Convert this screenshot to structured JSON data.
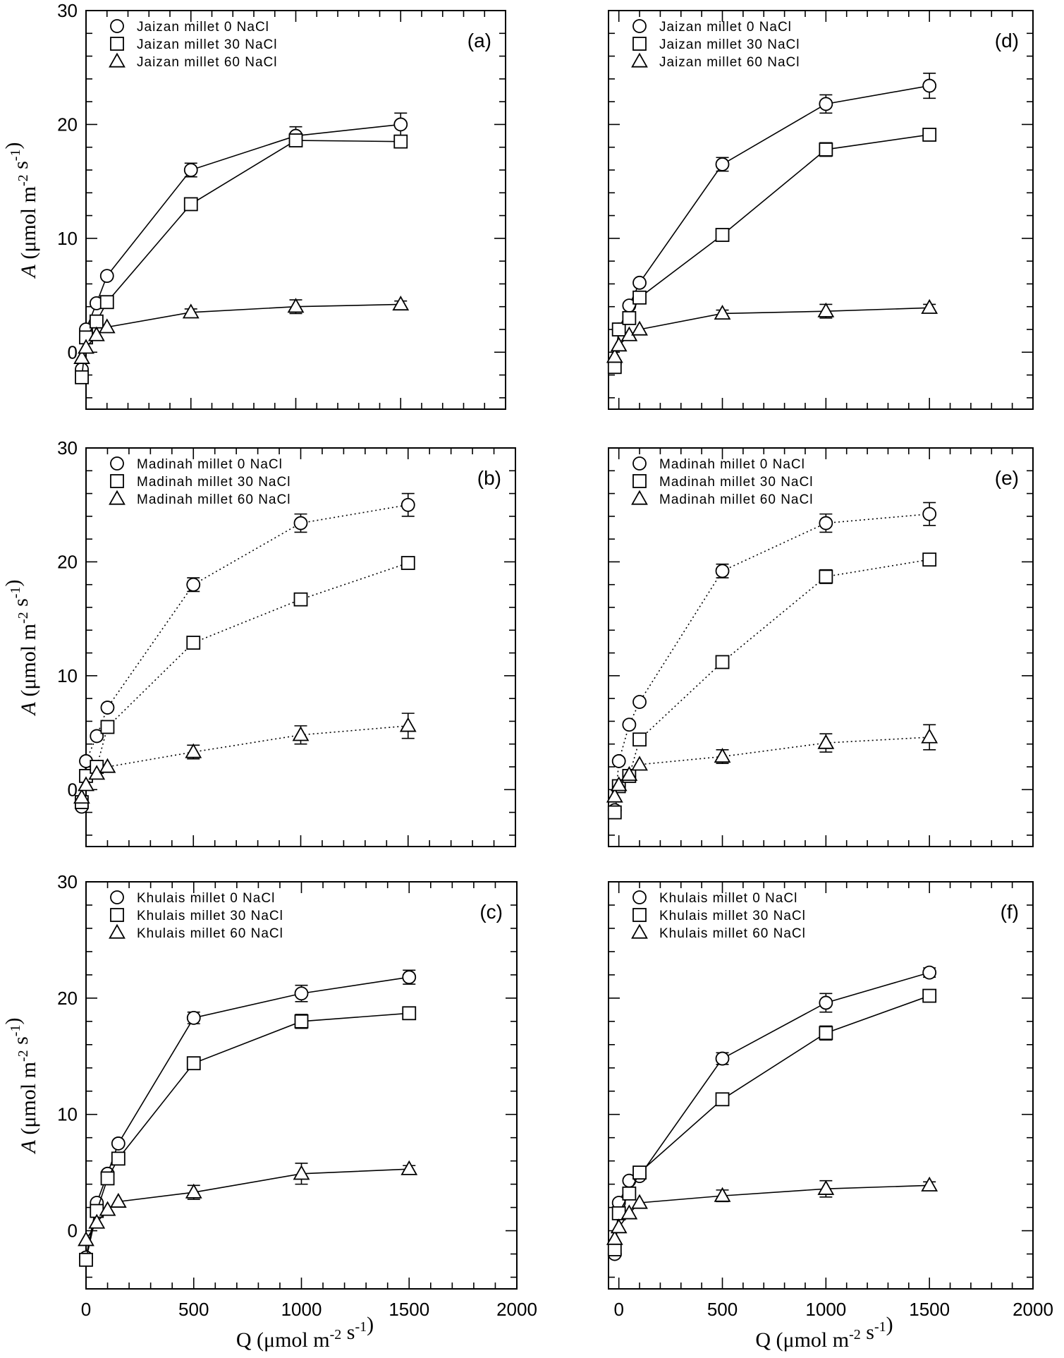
{
  "chart_data": [
    {
      "type": "scatter",
      "panel": "(a)",
      "xlabel": "",
      "ylabel": "A (μmol m-2 s-1)",
      "xlim": [
        0,
        2000
      ],
      "ylim": [
        -5,
        30
      ],
      "yticks": [
        "30",
        "20",
        "10",
        "0"
      ],
      "xticks": [],
      "line_style": "solid",
      "series": [
        {
          "name": "Jaizan millet 0 NaCl",
          "marker": "circle",
          "x": [
            -20,
            0,
            50,
            100,
            500,
            1000,
            1500
          ],
          "y": [
            -1.5,
            2.0,
            4.3,
            6.7,
            16.0,
            19.0,
            20.0
          ],
          "err": [
            0,
            0,
            0,
            0,
            0.6,
            0.8,
            1.0
          ]
        },
        {
          "name": "Jaizan millet 30 NaCl",
          "marker": "square",
          "x": [
            -20,
            0,
            50,
            100,
            500,
            1000,
            1500
          ],
          "y": [
            -2.2,
            1.3,
            2.7,
            4.4,
            13.0,
            18.6,
            18.5
          ],
          "err": [
            0,
            0,
            0,
            0,
            0,
            0.4,
            0
          ]
        },
        {
          "name": "Jaizan millet 60 NaCl",
          "marker": "triangle",
          "x": [
            -20,
            0,
            50,
            100,
            500,
            1000,
            1500
          ],
          "y": [
            -0.5,
            0.4,
            1.5,
            2.2,
            3.5,
            4.0,
            4.2
          ],
          "err": [
            0,
            0,
            0,
            0,
            0.3,
            0.6,
            0.3
          ]
        }
      ]
    },
    {
      "type": "scatter",
      "panel": "(b)",
      "xlabel": "",
      "ylabel": "A (μmol m-2 s-1)",
      "xlim": [
        0,
        2000
      ],
      "ylim": [
        -5,
        30
      ],
      "yticks": [
        "30",
        "20",
        "10",
        "0"
      ],
      "xticks": [],
      "line_style": "dotted",
      "series": [
        {
          "name": "Madinah millet 0 NaCl",
          "marker": "circle",
          "x": [
            -20,
            0,
            50,
            100,
            500,
            1000,
            1500
          ],
          "y": [
            -1.5,
            2.5,
            4.7,
            7.2,
            18.0,
            23.4,
            25.0
          ],
          "err": [
            0,
            0,
            0,
            0,
            0.6,
            0.8,
            1.0
          ]
        },
        {
          "name": "Madinah millet 30 NaCl",
          "marker": "square",
          "x": [
            -20,
            0,
            50,
            100,
            500,
            1000,
            1500
          ],
          "y": [
            -1.1,
            1.2,
            2.0,
            5.5,
            12.9,
            16.7,
            19.9
          ],
          "err": [
            0,
            0,
            0,
            0,
            0,
            0.5,
            0
          ]
        },
        {
          "name": "Madinah millet 60 NaCl",
          "marker": "triangle",
          "x": [
            -20,
            0,
            50,
            100,
            500,
            1000,
            1500
          ],
          "y": [
            -0.7,
            0.4,
            1.4,
            2.0,
            3.3,
            4.8,
            5.6
          ],
          "err": [
            0,
            0,
            0,
            0,
            0.6,
            0.8,
            1.1
          ]
        }
      ]
    },
    {
      "type": "scatter",
      "panel": "(c)",
      "xlabel": "Q (μmol m-2 s-1)",
      "ylabel": "A (μmol m-2 s-1)",
      "xlim": [
        0,
        2000
      ],
      "ylim": [
        -5,
        30
      ],
      "yticks": [
        "30",
        "20",
        "10",
        "0"
      ],
      "xticks": [
        "0",
        "500",
        "1000",
        "1500",
        "2000"
      ],
      "line_style": "solid",
      "series": [
        {
          "name": "Khulais millet 0 NaCl",
          "marker": "circle",
          "x": [
            0,
            50,
            100,
            150,
            500,
            1000,
            1500
          ],
          "y": [
            -2.3,
            2.4,
            4.9,
            7.5,
            18.3,
            20.4,
            21.8
          ],
          "err": [
            0,
            0,
            0,
            0,
            0.5,
            0.7,
            0.6
          ]
        },
        {
          "name": "Khulais millet 30 NaCl",
          "marker": "square",
          "x": [
            0,
            50,
            100,
            150,
            500,
            1000,
            1500
          ],
          "y": [
            -2.5,
            1.7,
            4.5,
            6.2,
            14.4,
            18.0,
            18.7
          ],
          "err": [
            0,
            0,
            0,
            0,
            0,
            0.6,
            0
          ]
        },
        {
          "name": "Khulais millet 60 NaCl",
          "marker": "triangle",
          "x": [
            0,
            50,
            100,
            150,
            500,
            1000,
            1500
          ],
          "y": [
            -0.8,
            0.7,
            1.8,
            2.5,
            3.3,
            4.9,
            5.3
          ],
          "err": [
            0,
            0,
            0,
            0,
            0.6,
            0.9,
            0.3
          ]
        }
      ]
    },
    {
      "type": "scatter",
      "panel": "(d)",
      "xlabel": "",
      "ylabel": "",
      "xlim": [
        -50,
        2000
      ],
      "ylim": [
        -5,
        30
      ],
      "yticks": [],
      "xticks": [],
      "line_style": "solid",
      "series": [
        {
          "name": "Jaizan millet 0 NaCl",
          "marker": "circle",
          "x": [
            -20,
            0,
            50,
            100,
            500,
            1000,
            1500
          ],
          "y": [
            -1.0,
            2.0,
            4.1,
            6.1,
            16.5,
            21.8,
            23.4
          ],
          "err": [
            0,
            0,
            0,
            0,
            0.6,
            0.8,
            1.1
          ]
        },
        {
          "name": "Jaizan millet 30 NaCl",
          "marker": "square",
          "x": [
            -20,
            0,
            50,
            100,
            500,
            1000,
            1500
          ],
          "y": [
            -1.3,
            2.0,
            3.0,
            4.8,
            10.3,
            17.8,
            19.1
          ],
          "err": [
            0,
            0,
            0,
            0,
            0,
            0.6,
            0
          ]
        },
        {
          "name": "Jaizan millet 60 NaCl",
          "marker": "triangle",
          "x": [
            -20,
            0,
            50,
            100,
            500,
            1000,
            1500
          ],
          "y": [
            -0.4,
            0.6,
            1.5,
            2.0,
            3.4,
            3.6,
            3.9
          ],
          "err": [
            0,
            0,
            0,
            0,
            0.3,
            0.6,
            0.3
          ]
        }
      ]
    },
    {
      "type": "scatter",
      "panel": "(e)",
      "xlabel": "",
      "ylabel": "",
      "xlim": [
        -50,
        2000
      ],
      "ylim": [
        -5,
        30
      ],
      "yticks": [],
      "xticks": [],
      "line_style": "dotted",
      "series": [
        {
          "name": "Madinah millet 0 NaCl",
          "marker": "circle",
          "x": [
            -20,
            0,
            50,
            100,
            500,
            1000,
            1500
          ],
          "y": [
            -1.8,
            2.5,
            5.7,
            7.7,
            19.2,
            23.4,
            24.2
          ],
          "err": [
            0,
            0,
            0,
            0,
            0.6,
            0.8,
            1.0
          ]
        },
        {
          "name": "Madinah millet 30 NaCl",
          "marker": "square",
          "x": [
            -20,
            0,
            50,
            100,
            500,
            1000,
            1500
          ],
          "y": [
            -2.0,
            0.3,
            1.2,
            4.4,
            11.2,
            18.7,
            20.2
          ],
          "err": [
            0,
            0,
            0,
            0,
            0,
            0.6,
            0
          ]
        },
        {
          "name": "Madinah millet 60 NaCl",
          "marker": "triangle",
          "x": [
            -20,
            0,
            50,
            100,
            500,
            1000,
            1500
          ],
          "y": [
            -0.6,
            0.4,
            1.3,
            2.2,
            2.9,
            4.1,
            4.6
          ],
          "err": [
            0,
            0,
            0,
            0,
            0.6,
            0.8,
            1.1
          ]
        }
      ]
    },
    {
      "type": "scatter",
      "panel": "(f)",
      "xlabel": "Q (μmol m-2 s-1)",
      "ylabel": "",
      "xlim": [
        -50,
        2000
      ],
      "ylim": [
        -5,
        30
      ],
      "yticks": [],
      "xticks": [
        "0",
        "500",
        "1000",
        "1500",
        "2000"
      ],
      "line_style": "solid",
      "series": [
        {
          "name": "Khulais millet 0 NaCl",
          "marker": "circle",
          "x": [
            -20,
            0,
            50,
            100,
            500,
            1000,
            1500
          ],
          "y": [
            -2.0,
            2.4,
            4.3,
            4.7,
            14.8,
            19.6,
            22.2
          ],
          "err": [
            0,
            0,
            0,
            0,
            0.5,
            0.8,
            0.4
          ]
        },
        {
          "name": "Khulais millet 30 NaCl",
          "marker": "square",
          "x": [
            -20,
            0,
            50,
            100,
            500,
            1000,
            1500
          ],
          "y": [
            -1.6,
            1.5,
            3.2,
            5.0,
            11.3,
            17.0,
            20.2
          ],
          "err": [
            0,
            0,
            0,
            0,
            0,
            0.6,
            0
          ]
        },
        {
          "name": "Khulais millet 60 NaCl",
          "marker": "triangle",
          "x": [
            -20,
            0,
            50,
            100,
            500,
            1000,
            1500
          ],
          "y": [
            -0.7,
            0.3,
            1.5,
            2.4,
            3.0,
            3.6,
            3.9
          ],
          "err": [
            0,
            0,
            0,
            0,
            0.5,
            0.7,
            0.3
          ]
        }
      ]
    }
  ]
}
